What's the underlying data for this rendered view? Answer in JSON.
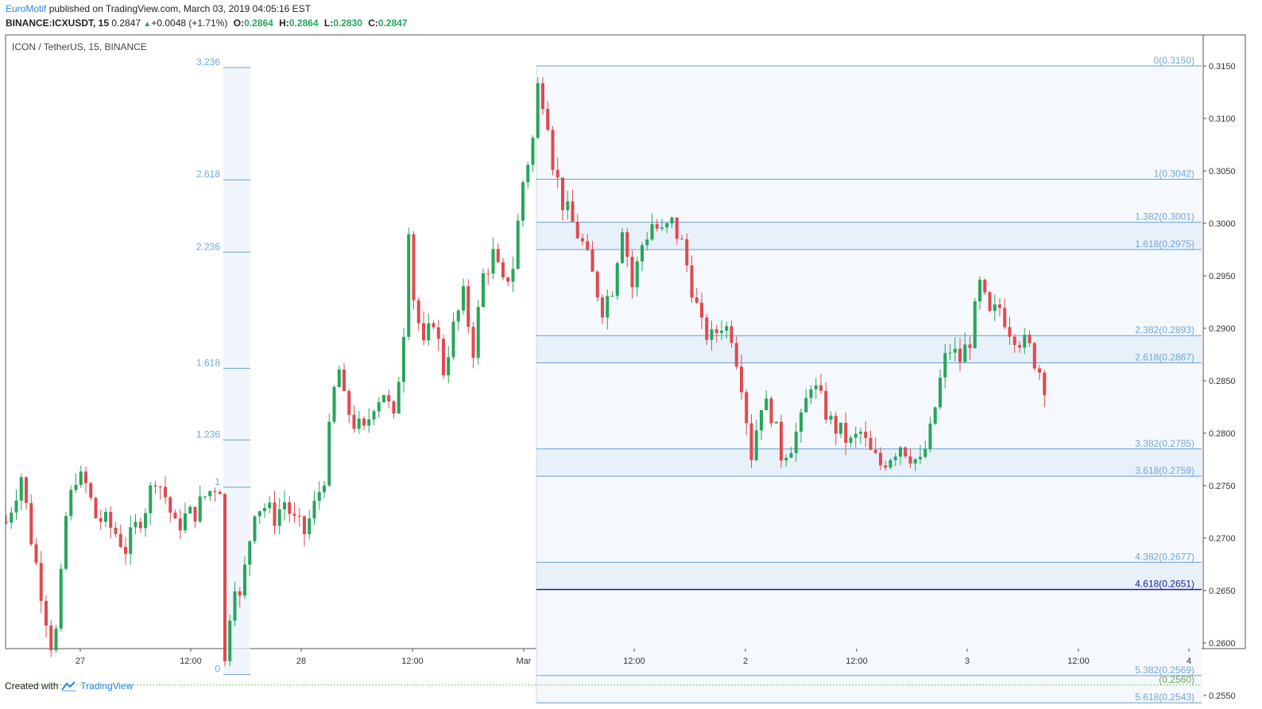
{
  "header": {
    "author": "EuroMotif",
    "published_text": "published on TradingView.com, March 03, 2019 04:05:16 EST",
    "symbol_line": "BINANCE:ICXUSDT, 15",
    "last_price": "0.2847",
    "change": "+0.0048 (+1.71%)",
    "open_label": "O:",
    "open": "0.2864",
    "high_label": "H:",
    "high": "0.2864",
    "low_label": "L:",
    "low": "0.2830",
    "close_label": "C:",
    "close": "0.2847"
  },
  "footer": {
    "created_with": "Created with",
    "brand": "TradingView"
  },
  "colors": {
    "up": "#26a65b",
    "down": "#e0494d",
    "fib_line": "#6a9fd1",
    "fib_text": "#6fa8dc",
    "highlight": "#1c1f99"
  },
  "chart_data": {
    "type": "candlestick",
    "title": "ICON / TetherUS, 15, BINANCE",
    "y_axis": {
      "range": [
        0.254,
        0.318
      ],
      "ticks": [
        "0.3150",
        "0.3100",
        "0.3050",
        "0.3000",
        "0.2950",
        "0.2900",
        "0.2850",
        "0.2800",
        "0.2750",
        "0.2700",
        "0.2650",
        "0.2600",
        "0.2550"
      ]
    },
    "x_axis": {
      "ticks": [
        "27",
        "12:00",
        "28",
        "12:00",
        "Mar",
        "12:00",
        "2",
        "12:00",
        "3",
        "12:00",
        "4"
      ]
    },
    "series_path": [
      [
        0,
        0.2715
      ],
      [
        3,
        0.276
      ],
      [
        5,
        0.27
      ],
      [
        7,
        0.265
      ],
      [
        9,
        0.26
      ],
      [
        10,
        0.261
      ],
      [
        11,
        0.266
      ],
      [
        12,
        0.272
      ],
      [
        14,
        0.276
      ],
      [
        16,
        0.275
      ],
      [
        18,
        0.272
      ],
      [
        20,
        0.2715
      ],
      [
        22,
        0.2705
      ],
      [
        24,
        0.269
      ],
      [
        26,
        0.271
      ],
      [
        28,
        0.273
      ],
      [
        30,
        0.276
      ],
      [
        32,
        0.274
      ],
      [
        34,
        0.271
      ],
      [
        36,
        0.272
      ],
      [
        38,
        0.2725
      ],
      [
        40,
        0.274
      ],
      [
        42,
        0.275
      ],
      [
        43,
        0.275
      ],
      [
        44,
        0.258
      ],
      [
        45,
        0.263
      ],
      [
        46,
        0.266
      ],
      [
        47,
        0.264
      ],
      [
        48,
        0.267
      ],
      [
        50,
        0.273
      ],
      [
        52,
        0.273
      ],
      [
        54,
        0.272
      ],
      [
        56,
        0.2735
      ],
      [
        58,
        0.2715
      ],
      [
        60,
        0.2705
      ],
      [
        62,
        0.273
      ],
      [
        64,
        0.276
      ],
      [
        66,
        0.284
      ],
      [
        67,
        0.286
      ],
      [
        68,
        0.283
      ],
      [
        70,
        0.281
      ],
      [
        72,
        0.28
      ],
      [
        74,
        0.283
      ],
      [
        76,
        0.284
      ],
      [
        78,
        0.281
      ],
      [
        80,
        0.29
      ],
      [
        81,
        0.3
      ],
      [
        82,
        0.293
      ],
      [
        84,
        0.288
      ],
      [
        86,
        0.291
      ],
      [
        88,
        0.286
      ],
      [
        90,
        0.29
      ],
      [
        92,
        0.293
      ],
      [
        94,
        0.288
      ],
      [
        96,
        0.295
      ],
      [
        98,
        0.297
      ],
      [
        100,
        0.294
      ],
      [
        102,
        0.296
      ],
      [
        104,
        0.304
      ],
      [
        106,
        0.308
      ],
      [
        107,
        0.313
      ],
      [
        108,
        0.312
      ],
      [
        109,
        0.31
      ],
      [
        110,
        0.306
      ],
      [
        112,
        0.302
      ],
      [
        114,
        0.3
      ],
      [
        116,
        0.298
      ],
      [
        118,
        0.295
      ],
      [
        120,
        0.292
      ],
      [
        122,
        0.294
      ],
      [
        124,
        0.3
      ],
      [
        126,
        0.294
      ],
      [
        128,
        0.298
      ],
      [
        130,
        0.3
      ],
      [
        132,
        0.299
      ],
      [
        134,
        0.3
      ],
      [
        136,
        0.298
      ],
      [
        138,
        0.294
      ],
      [
        140,
        0.29
      ],
      [
        142,
        0.289
      ],
      [
        144,
        0.2905
      ],
      [
        146,
        0.2895
      ],
      [
        148,
        0.285
      ],
      [
        150,
        0.278
      ],
      [
        152,
        0.283
      ],
      [
        154,
        0.282
      ],
      [
        156,
        0.278
      ],
      [
        158,
        0.279
      ],
      [
        160,
        0.281
      ],
      [
        162,
        0.285
      ],
      [
        164,
        0.283
      ],
      [
        166,
        0.281
      ],
      [
        168,
        0.28
      ],
      [
        170,
        0.279
      ],
      [
        172,
        0.28
      ],
      [
        174,
        0.278
      ],
      [
        176,
        0.277
      ],
      [
        178,
        0.278
      ],
      [
        180,
        0.279
      ],
      [
        182,
        0.278
      ],
      [
        184,
        0.277
      ],
      [
        186,
        0.28
      ],
      [
        188,
        0.285
      ],
      [
        189,
        0.287
      ],
      [
        190,
        0.288
      ],
      [
        192,
        0.287
      ],
      [
        194,
        0.289
      ],
      [
        196,
        0.294
      ],
      [
        198,
        0.291
      ],
      [
        200,
        0.292
      ],
      [
        202,
        0.29
      ],
      [
        204,
        0.289
      ],
      [
        206,
        0.288
      ],
      [
        208,
        0.286
      ],
      [
        209,
        0.2847
      ]
    ],
    "fib_left": {
      "levels": [
        {
          "label": "3.236",
          "price": 0.31485
        },
        {
          "label": "2.618",
          "price": 0.30415
        },
        {
          "label": "2.236",
          "price": 0.29725
        },
        {
          "label": "1.618",
          "price": 0.28618
        },
        {
          "label": "1.236",
          "price": 0.27935
        },
        {
          "label": "1",
          "price": 0.27485
        },
        {
          "label": "0",
          "price": 0.257
        }
      ]
    },
    "fib_right": {
      "levels": [
        {
          "label": "0(0.3150)",
          "price": 0.315
        },
        {
          "label": "1(0.3042)",
          "price": 0.3042
        },
        {
          "label": "1.382(0.3001)",
          "price": 0.3001
        },
        {
          "label": "1.618(0.2975)",
          "price": 0.2975
        },
        {
          "label": "2.382(0.2893)",
          "price": 0.2893
        },
        {
          "label": "2.618(0.2867)",
          "price": 0.2867
        },
        {
          "label": "3.382(0.2785)",
          "price": 0.2785
        },
        {
          "label": "3.618(0.2759)",
          "price": 0.2759
        },
        {
          "label": "4.382(0.2677)",
          "price": 0.2677
        },
        {
          "label": "4.618(0.2651)",
          "price": 0.2651,
          "highlight": true
        },
        {
          "label": "5.382(0.2569)",
          "price": 0.2569
        },
        {
          "label": "(0.2560)",
          "price": 0.256,
          "green": true
        },
        {
          "label": "5.618(0.2543)",
          "price": 0.2543
        }
      ]
    }
  }
}
